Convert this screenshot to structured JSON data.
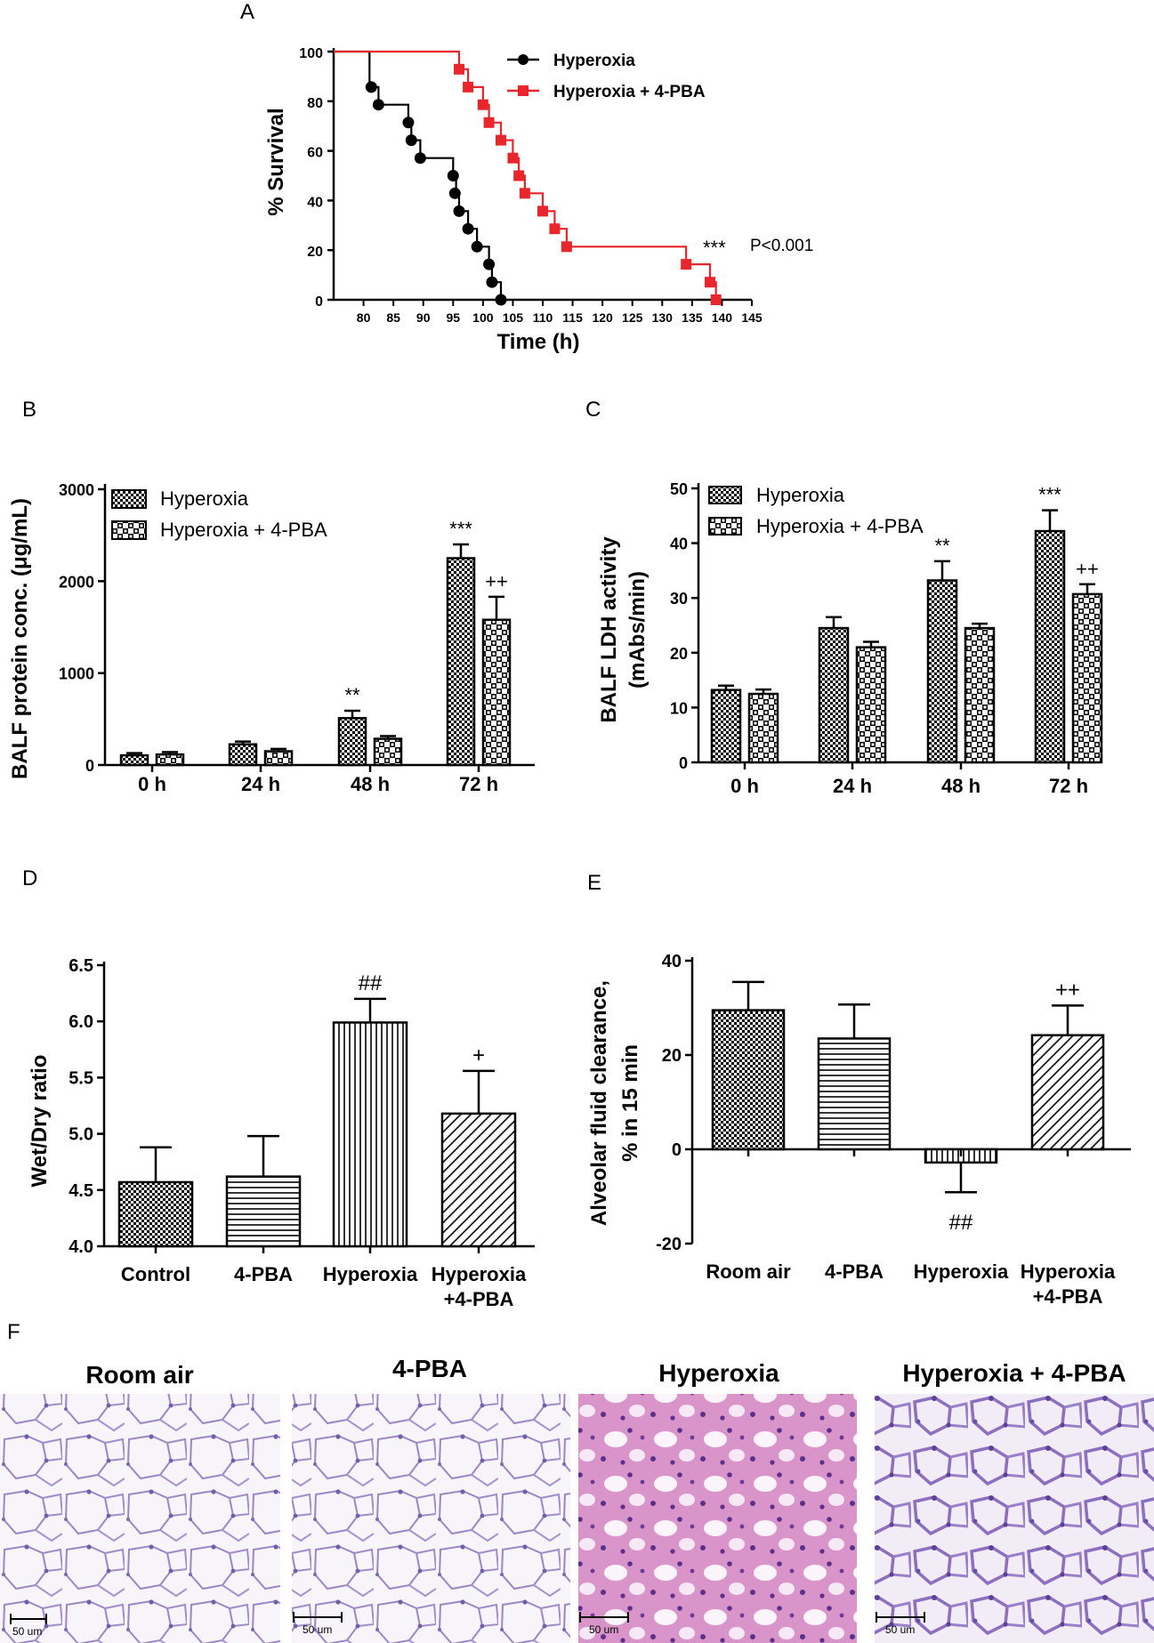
{
  "panel_letters": [
    "A",
    "B",
    "C",
    "D",
    "E",
    "F"
  ],
  "chart_data": [
    {
      "panel": "A",
      "type": "line",
      "subtype": "kaplan-meier",
      "xlabel": "Time (h)",
      "ylabel": "% Survival",
      "xlim": [
        75,
        145
      ],
      "ylim": [
        0,
        100
      ],
      "xticks": [
        80,
        85,
        90,
        95,
        100,
        105,
        110,
        115,
        120,
        125,
        130,
        135,
        140,
        145
      ],
      "yticks": [
        0,
        20,
        40,
        60,
        80,
        100
      ],
      "annotation_stars": "***",
      "annotation_p": "P<0.001",
      "colors": {
        "Hyperoxia": "#000000",
        "Hyperoxia + 4-PBA": "#e8262b"
      },
      "series": [
        {
          "name": "Hyperoxia",
          "step": [
            [
              75,
              100
            ],
            [
              81,
              100
            ],
            [
              81,
              85.7
            ],
            [
              82.5,
              85.7
            ],
            [
              82.5,
              78.6
            ],
            [
              87.5,
              78.6
            ],
            [
              87.5,
              71.4
            ],
            [
              88,
              71.4
            ],
            [
              88,
              64.3
            ],
            [
              89.5,
              64.3
            ],
            [
              89.5,
              57.1
            ],
            [
              95,
              57.1
            ],
            [
              95,
              50
            ],
            [
              95.5,
              50
            ],
            [
              95.5,
              42.9
            ],
            [
              96,
              42.9
            ],
            [
              96,
              35.7
            ],
            [
              97.5,
              35.7
            ],
            [
              97.5,
              28.6
            ],
            [
              99,
              28.6
            ],
            [
              99,
              21.4
            ],
            [
              101,
              21.4
            ],
            [
              101,
              14.3
            ],
            [
              101.5,
              14.3
            ],
            [
              101.5,
              7.1
            ],
            [
              103,
              7.1
            ],
            [
              103,
              0
            ]
          ],
          "points": [
            [
              81.3,
              85.7
            ],
            [
              82.5,
              78.6
            ],
            [
              87.5,
              71.4
            ],
            [
              88,
              64.3
            ],
            [
              89.5,
              57.1
            ],
            [
              95,
              50
            ],
            [
              95.3,
              42.9
            ],
            [
              96,
              35.7
            ],
            [
              97.5,
              28.6
            ],
            [
              99,
              21.4
            ],
            [
              101,
              14.3
            ],
            [
              101.5,
              7.1
            ],
            [
              103,
              0
            ]
          ]
        },
        {
          "name": "Hyperoxia + 4-PBA",
          "step": [
            [
              75,
              100
            ],
            [
              96,
              100
            ],
            [
              96,
              92.9
            ],
            [
              97.5,
              92.9
            ],
            [
              97.5,
              85.7
            ],
            [
              100,
              85.7
            ],
            [
              100,
              78.6
            ],
            [
              101,
              78.6
            ],
            [
              101,
              71.4
            ],
            [
              103,
              71.4
            ],
            [
              103,
              64.3
            ],
            [
              105,
              64.3
            ],
            [
              105,
              57.1
            ],
            [
              106,
              57.1
            ],
            [
              106,
              50
            ],
            [
              107,
              50
            ],
            [
              107,
              42.9
            ],
            [
              110,
              42.9
            ],
            [
              110,
              35.7
            ],
            [
              112,
              35.7
            ],
            [
              112,
              28.6
            ],
            [
              114,
              28.6
            ],
            [
              114,
              21.4
            ],
            [
              134,
              21.4
            ],
            [
              134,
              14.3
            ],
            [
              138,
              14.3
            ],
            [
              138,
              7.1
            ],
            [
              139,
              7.1
            ],
            [
              139,
              0
            ]
          ],
          "points": [
            [
              96,
              92.9
            ],
            [
              97.5,
              85.7
            ],
            [
              100,
              78.6
            ],
            [
              101,
              71.4
            ],
            [
              103,
              64.3
            ],
            [
              105,
              57.1
            ],
            [
              106,
              50
            ],
            [
              107,
              42.9
            ],
            [
              110,
              35.7
            ],
            [
              112,
              28.6
            ],
            [
              114,
              21.4
            ],
            [
              134,
              14.3
            ],
            [
              138,
              7.1
            ],
            [
              139,
              0
            ]
          ]
        }
      ]
    },
    {
      "panel": "B",
      "type": "bar",
      "ylabel": "BALF protein conc. (μg/mL)",
      "ylim": [
        0,
        3000
      ],
      "yticks": [
        0,
        1000,
        2000,
        3000
      ],
      "categories": [
        "0 h",
        "24 h",
        "48 h",
        "72 h"
      ],
      "series": [
        {
          "name": "Hyperoxia",
          "values": [
            105,
            225,
            510,
            2250
          ],
          "errors": [
            25,
            30,
            80,
            150
          ],
          "labels": [
            "",
            "",
            "**",
            "***"
          ]
        },
        {
          "name": "Hyperoxia + 4-PBA",
          "values": [
            115,
            150,
            285,
            1580
          ],
          "errors": [
            25,
            25,
            30,
            250
          ],
          "labels": [
            "",
            "",
            "",
            "++"
          ]
        }
      ]
    },
    {
      "panel": "C",
      "type": "bar",
      "ylabel_lines": [
        "BALF LDH activity",
        "(mAbs/min)"
      ],
      "ylim": [
        0,
        50
      ],
      "yticks": [
        0,
        10,
        20,
        30,
        40,
        50
      ],
      "categories": [
        "0 h",
        "24 h",
        "48 h",
        "72 h"
      ],
      "series": [
        {
          "name": "Hyperoxia",
          "values": [
            13.2,
            24.5,
            33.2,
            42.2
          ],
          "errors": [
            0.8,
            2.0,
            3.5,
            3.8
          ],
          "labels": [
            "",
            "",
            "**",
            "***"
          ]
        },
        {
          "name": "Hyperoxia + 4-PBA",
          "values": [
            12.5,
            21,
            24.5,
            30.7
          ],
          "errors": [
            0.8,
            1.0,
            0.8,
            1.8
          ],
          "labels": [
            "",
            "",
            "",
            "++"
          ]
        }
      ]
    },
    {
      "panel": "D",
      "type": "bar",
      "ylabel": "Wet/Dry ratio",
      "ylim": [
        4.0,
        6.5
      ],
      "yticks": [
        "4.0",
        "4.5",
        "5.0",
        "5.5",
        "6.0",
        "6.5"
      ],
      "categories": [
        [
          "Control"
        ],
        [
          "4-PBA"
        ],
        [
          "Hyperoxia"
        ],
        [
          "Hyperoxia",
          "+4-PBA"
        ]
      ],
      "values": [
        4.57,
        4.62,
        5.99,
        5.18
      ],
      "errors": [
        0.31,
        0.36,
        0.21,
        0.38
      ],
      "labels": [
        "",
        "",
        "##",
        "+"
      ],
      "patterns": [
        "checker",
        "hlines",
        "vlines",
        "diag"
      ]
    },
    {
      "panel": "E",
      "type": "bar",
      "ylabel_lines": [
        "Alveolar fluid clearance,",
        "% in 15 min"
      ],
      "ylim": [
        -20,
        40
      ],
      "yticks": [
        -20,
        0,
        20,
        40
      ],
      "categories": [
        [
          "Room air"
        ],
        [
          "4-PBA"
        ],
        [
          "Hyperoxia"
        ],
        [
          "Hyperoxia",
          "+4-PBA"
        ]
      ],
      "values": [
        29.5,
        23.5,
        -2.8,
        24.2
      ],
      "errors": [
        6.0,
        7.2,
        6.3,
        6.3
      ],
      "labels": [
        "",
        "",
        "##",
        "++"
      ],
      "patterns": [
        "checker",
        "hlines",
        "vlines",
        "diag"
      ]
    }
  ],
  "micrographs": {
    "titles": [
      "Room air",
      "4-PBA",
      "Hyperoxia",
      "Hyperoxia + 4-PBA"
    ],
    "scale_label": "50 um"
  }
}
